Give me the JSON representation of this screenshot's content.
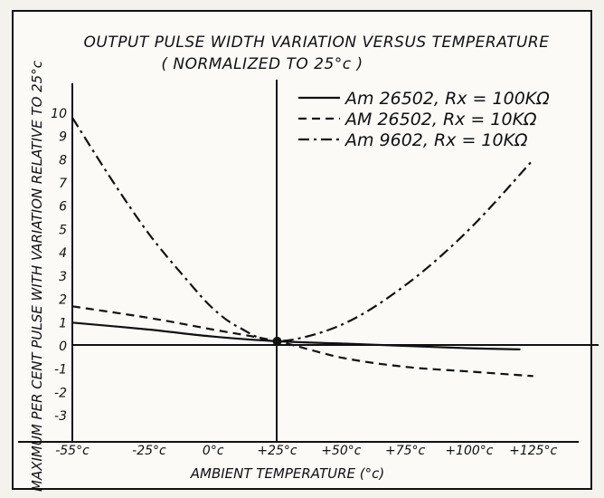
{
  "chart_data": {
    "type": "line",
    "title": "OUTPUT PULSE WIDTH VARIATION VERSUS TEMPERATURE",
    "subtitle": "( NORMALIZED TO 25°c )",
    "xlabel": "AMBIENT TEMPERATURE (°c)",
    "ylabel": "MAXIMUM PER CENT PULSE WITH VARIATION RELATIVE TO 25°c",
    "x_tick_labels": [
      "-55°c",
      "-25°c",
      "0°c",
      "+25°c",
      "+50°c",
      "+75°c",
      "+100°c",
      "+125°c"
    ],
    "y_tick_labels": [
      "10",
      "9",
      "8",
      "7",
      "6",
      "5",
      "4",
      "3",
      "2",
      "1",
      "0",
      "-1",
      "-2",
      "-3"
    ],
    "xlim": [
      -55,
      135
    ],
    "ylim": [
      -3.5,
      10.5
    ],
    "grid": false,
    "legend_position": "top-right",
    "series": [
      {
        "name": "Am 26502, Rx = 100KΩ",
        "style": "solid",
        "x": [
          -55,
          -25,
          0,
          25,
          50,
          75,
          100,
          120
        ],
        "y": [
          1.0,
          0.7,
          0.4,
          0.2,
          0.1,
          0.0,
          -0.1,
          -0.15
        ]
      },
      {
        "name": "AM 26502, Rx = 10KΩ",
        "style": "dashed",
        "x": [
          -55,
          -25,
          0,
          25,
          50,
          75,
          100,
          125
        ],
        "y": [
          1.7,
          1.2,
          0.7,
          0.2,
          -0.5,
          -0.9,
          -1.1,
          -1.3
        ]
      },
      {
        "name": "Am 9602, Rx = 10KΩ",
        "style": "dashdot",
        "x": [
          -55,
          -40,
          -25,
          -10,
          0,
          10,
          25,
          50,
          75,
          100,
          125
        ],
        "y": [
          9.8,
          7.2,
          4.8,
          2.8,
          1.6,
          0.8,
          0.2,
          0.9,
          2.6,
          5.0,
          8.0
        ]
      }
    ]
  }
}
